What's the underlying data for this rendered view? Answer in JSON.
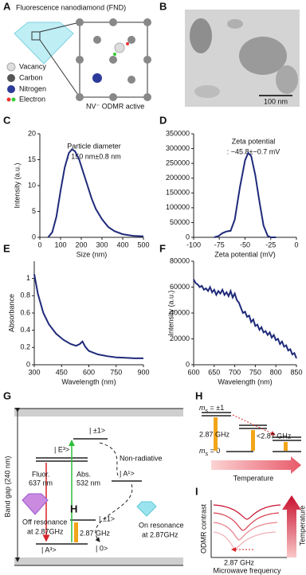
{
  "panel_labels": [
    "A",
    "B",
    "C",
    "D",
    "E",
    "F",
    "G",
    "H",
    "I"
  ],
  "diagram_a": {
    "title": "Fluorescence nanodiamond (FND)",
    "legend": [
      "Vacancy",
      "Carbon",
      "Nitrogen",
      "Electron"
    ],
    "caption": "NV⁻ ODMR active"
  },
  "image_b": {
    "scale_bar": "100 nm"
  },
  "chart_data": [
    {
      "type": "line",
      "title": "Particle diameter",
      "subtitle": ": 150 nm±0.8 nm",
      "x_label": "Size (nm)",
      "y_label": "Intensity (a.u.)",
      "color": "#1f2a7a",
      "x": [
        40,
        60,
        80,
        100,
        120,
        140,
        155,
        170,
        190,
        210,
        230,
        250,
        270,
        300,
        330,
        360,
        400,
        450,
        500
      ],
      "values": [
        0,
        1,
        4,
        9,
        13.5,
        16.3,
        17,
        16.6,
        15,
        12.5,
        10,
        7.5,
        5.5,
        3.5,
        2,
        1.2,
        0.6,
        0.3,
        0.2
      ],
      "xlim": [
        0,
        500
      ],
      "xticks": [
        0,
        100,
        200,
        300,
        400,
        500
      ],
      "ylim": [
        0,
        20
      ],
      "yticks": [
        0,
        5,
        10,
        15,
        20
      ]
    },
    {
      "type": "line",
      "title": "Zeta potential",
      "subtitle": ": −45.8±−0.7 mV",
      "x_label": "Zeta potential (mV)",
      "color": "#1f2a7a",
      "x": [
        -80,
        -76,
        -72,
        -68,
        -64,
        -60,
        -55,
        -50,
        -47,
        -44,
        -40,
        -36,
        -32,
        -28,
        -25,
        -20
      ],
      "values": [
        0,
        4000,
        14000,
        20000,
        22000,
        60000,
        170000,
        260000,
        285000,
        275000,
        210000,
        120000,
        40000,
        5000,
        0,
        0
      ],
      "xlim": [
        -100,
        0
      ],
      "xticks": [
        -100,
        -75,
        -50,
        -25,
        0
      ],
      "ylim": [
        0,
        350000
      ],
      "yticks": [
        0,
        50000,
        100000,
        150000,
        200000,
        250000,
        300000,
        350000
      ]
    },
    {
      "type": "line",
      "x_label": "Wavelength (nm)",
      "y_label": "Absorbance",
      "color": "#1f2a7a",
      "x": [
        300,
        320,
        350,
        380,
        420,
        460,
        500,
        530,
        550,
        565,
        580,
        600,
        650,
        700,
        750,
        800,
        850,
        900
      ],
      "values": [
        1.05,
        0.82,
        0.6,
        0.47,
        0.36,
        0.29,
        0.24,
        0.22,
        0.24,
        0.27,
        0.21,
        0.16,
        0.12,
        0.1,
        0.085,
        0.08,
        0.075,
        0.075
      ],
      "xlim": [
        300,
        900
      ],
      "xticks": [
        300,
        450,
        600,
        750,
        900
      ],
      "ylim": [
        0,
        1.2
      ],
      "yticks": [
        0,
        0.2,
        0.4,
        0.6,
        0.8,
        1
      ]
    },
    {
      "type": "line",
      "x_label": "Wavelength (nm)",
      "y_label": "Intensity (a.u.)",
      "color": "#1f2a7a",
      "x": [
        600,
        605,
        610,
        615,
        620,
        625,
        630,
        635,
        640,
        645,
        650,
        655,
        660,
        665,
        670,
        675,
        680,
        685,
        690,
        695,
        700,
        705,
        710,
        715,
        720,
        725,
        730,
        735,
        740,
        745,
        750,
        755,
        760,
        765,
        770,
        775,
        780,
        785,
        790,
        795,
        800,
        805,
        810,
        815,
        820,
        825,
        830,
        835,
        840,
        845,
        850
      ],
      "values": [
        66000,
        63000,
        62000,
        60000,
        61000,
        58000,
        59000,
        57000,
        60000,
        56000,
        58000,
        54000,
        57000,
        55000,
        58000,
        54000,
        56000,
        53000,
        57000,
        52000,
        55000,
        50000,
        48000,
        44000,
        40000,
        41000,
        37000,
        38000,
        33000,
        35000,
        30000,
        31000,
        27000,
        29000,
        25000,
        26000,
        23000,
        25000,
        21000,
        23000,
        19000,
        20000,
        16000,
        18000,
        14000,
        15000,
        11000,
        12000,
        8000,
        9000,
        5000
      ],
      "xlim": [
        600,
        850
      ],
      "xticks": [
        600,
        650,
        700,
        750,
        800,
        850
      ],
      "ylim": [
        0,
        80000
      ],
      "yticks": [
        0,
        20000,
        40000,
        60000,
        80000
      ]
    }
  ],
  "diagram_g": {
    "band_gap": "Band gap (240 nm)",
    "e3": "| E³>",
    "pm1_upper": "| ±1>",
    "nonrad": "Non-radiative",
    "a1": "| A¹>",
    "fluor": "Fluor.",
    "fluor_nm": "637 nm",
    "abs": "Abs.",
    "abs_nm": "532 nm",
    "off1": "Off resonance",
    "off2": "at 2.87GHz",
    "h": "H",
    "ghz": "2.87 GHz",
    "pm1_lower": "| ±1>",
    "on1": "On resonance",
    "on2": "at 2.87GHz",
    "a3": "| A³>",
    "zero": "| 0>"
  },
  "diagram_h": {
    "symbol": "m",
    "subscript": "s",
    "upper": " = ±1",
    "lower": " = 0",
    "left_ghz": "2.87 GHz",
    "right_ghz": "<2.87 GHz",
    "arrow": "Temperature"
  },
  "diagram_i": {
    "y_label": "ODMR contrast",
    "arrow": "Temperature",
    "ghz": "2.87 GHz",
    "x_label": "Microwave frequency"
  }
}
